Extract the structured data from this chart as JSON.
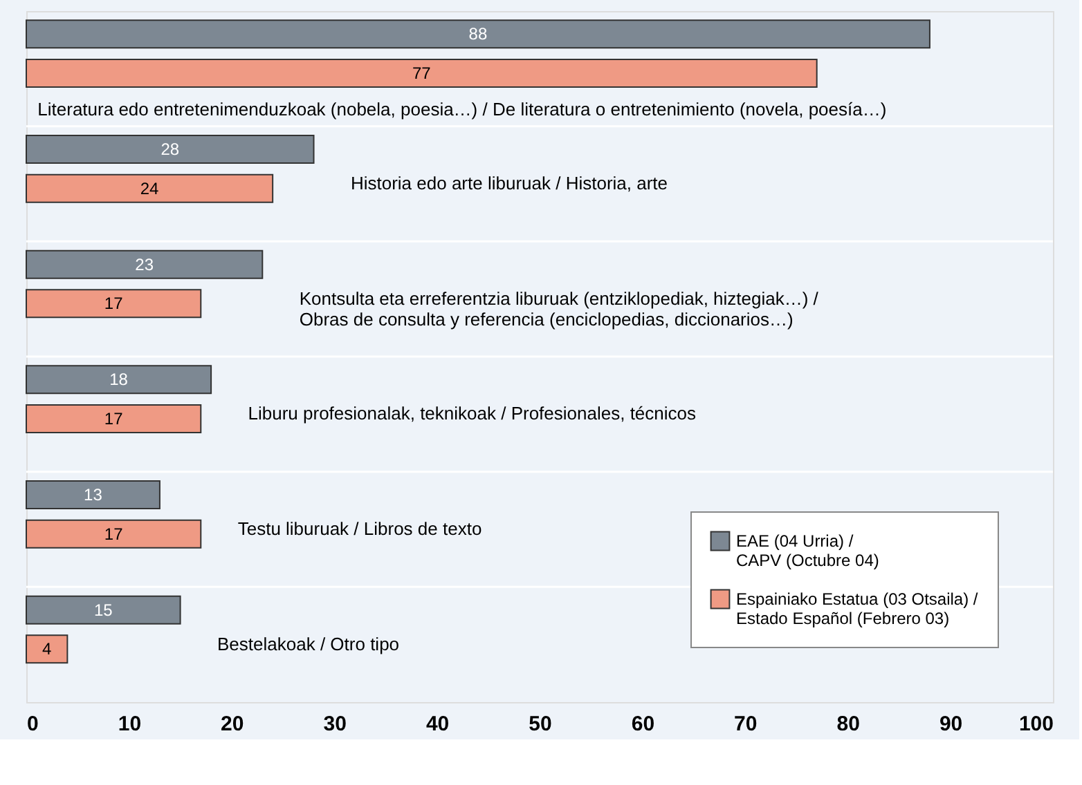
{
  "chart_data": {
    "type": "bar",
    "orientation": "horizontal",
    "categories": [
      "Literatura edo entretenimenduzkoak (nobela, poesia…) / De literatura o entretenimiento (novela, poesía…)",
      "Historia edo arte liburuak / Historia, arte",
      "Kontsulta eta erreferentzia liburuak (entziklopediak, hiztegiak…) / Obras de consulta y referencia (enciclopedias, diccionarios…)",
      "Liburu profesionalak, teknikoak / Profesionales, técnicos",
      "Testu liburuak / Libros de texto",
      "Bestelakoak / Otro tipo"
    ],
    "series": [
      {
        "name": "EAE (04 Urria) / CAPV (Octubre 04)",
        "color": "#7d8893",
        "values": [
          88,
          28,
          23,
          18,
          13,
          15
        ]
      },
      {
        "name": "Espainiako Estatua (03 Otsaila) / Estado Español (Febrero 03)",
        "color": "#ef9a84",
        "values": [
          77,
          24,
          17,
          17,
          17,
          4
        ]
      }
    ],
    "xlim": [
      0,
      100
    ],
    "xticks": [
      0,
      10,
      20,
      30,
      40,
      50,
      60,
      70,
      80,
      90,
      100
    ],
    "data_labels": true,
    "grid": "y",
    "legend": "bottom right"
  }
}
